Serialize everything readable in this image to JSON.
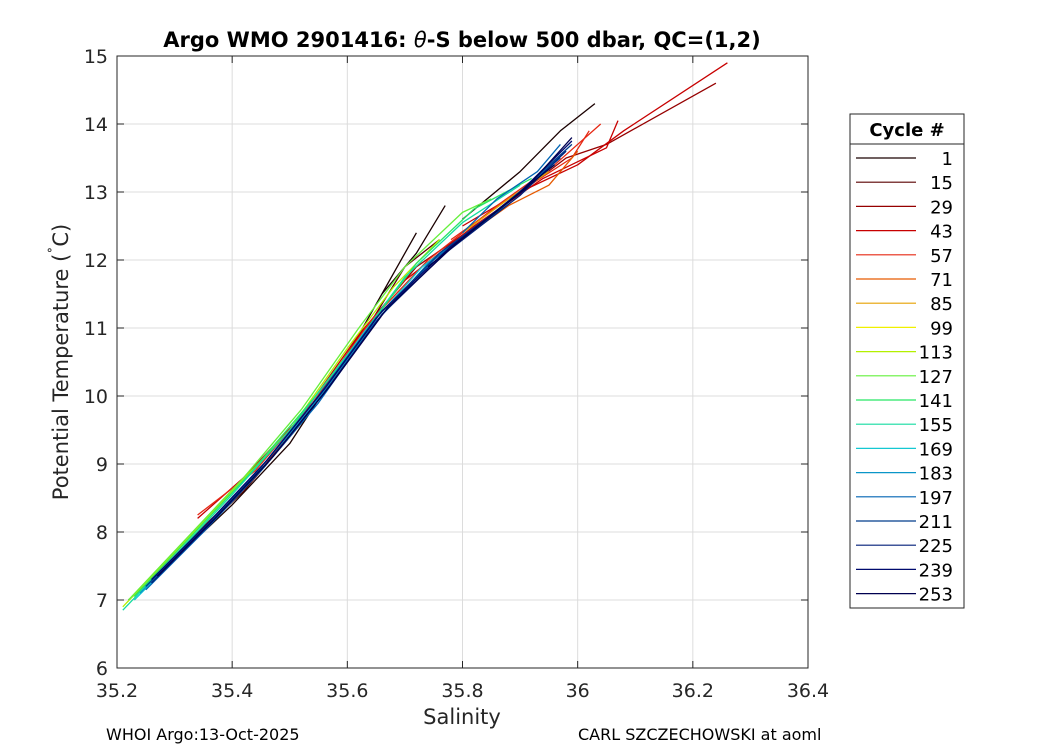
{
  "chart_data": {
    "type": "line",
    "title_parts": [
      "Argo WMO 2901416: ",
      "θ",
      "-S below 500 dbar,  QC=(1,2)"
    ],
    "xlabel": "Salinity",
    "ylabel_parts": [
      "Potential Temperature (",
      "˚",
      "C)"
    ],
    "xlim": [
      35.2,
      36.4
    ],
    "ylim": [
      6,
      15
    ],
    "xticks": [
      35.2,
      35.4,
      35.6,
      35.8,
      36,
      36.2,
      36.4
    ],
    "xtick_labels": [
      "35.2",
      "35.4",
      "35.6",
      "35.8",
      "36",
      "36.2",
      "36.4"
    ],
    "yticks": [
      6,
      7,
      8,
      9,
      10,
      11,
      12,
      13,
      14,
      15
    ],
    "ytick_labels": [
      "6",
      "7",
      "8",
      "9",
      "10",
      "11",
      "12",
      "13",
      "14",
      "15"
    ],
    "grid": true,
    "legend": {
      "title": "Cycle #",
      "placement": "outside-right",
      "entries": [
        {
          "label": "1",
          "color": "#1a0000"
        },
        {
          "label": "15",
          "color": "#5a0000"
        },
        {
          "label": "29",
          "color": "#960000"
        },
        {
          "label": "43",
          "color": "#c80000"
        },
        {
          "label": "57",
          "color": "#e62814"
        },
        {
          "label": "71",
          "color": "#e65a00"
        },
        {
          "label": "85",
          "color": "#e6a000"
        },
        {
          "label": "99",
          "color": "#f0f000"
        },
        {
          "label": "113",
          "color": "#b4f000"
        },
        {
          "label": "127",
          "color": "#64f03c"
        },
        {
          "label": "141",
          "color": "#28e664"
        },
        {
          "label": "155",
          "color": "#14dca0"
        },
        {
          "label": "169",
          "color": "#14c8d2"
        },
        {
          "label": "183",
          "color": "#0a96c8"
        },
        {
          "label": "197",
          "color": "#0064b4"
        },
        {
          "label": "211",
          "color": "#003c8c"
        },
        {
          "label": "225",
          "color": "#001e78"
        },
        {
          "label": "239",
          "color": "#000a6e"
        },
        {
          "label": "253",
          "color": "#000050"
        }
      ]
    },
    "series": [
      {
        "color": "#1a0000",
        "points": [
          [
            35.22,
            7.0
          ],
          [
            35.3,
            7.6
          ],
          [
            35.4,
            8.4
          ],
          [
            35.5,
            9.3
          ],
          [
            35.6,
            10.6
          ],
          [
            35.66,
            11.5
          ],
          [
            35.72,
            12.4
          ]
        ]
      },
      {
        "color": "#1a0000",
        "points": [
          [
            35.66,
            11.5
          ],
          [
            35.72,
            12.1
          ],
          [
            35.77,
            12.8
          ]
        ]
      },
      {
        "color": "#1a0000",
        "points": [
          [
            35.8,
            12.6
          ],
          [
            35.9,
            13.3
          ],
          [
            35.97,
            13.9
          ],
          [
            36.03,
            14.3
          ]
        ]
      },
      {
        "color": "#5a0000",
        "points": [
          [
            35.24,
            7.1
          ],
          [
            35.32,
            7.8
          ],
          [
            35.42,
            8.6
          ],
          [
            35.52,
            9.6
          ],
          [
            35.62,
            10.8
          ],
          [
            35.7,
            11.9
          ],
          [
            35.76,
            12.3
          ]
        ]
      },
      {
        "color": "#960000",
        "points": [
          [
            35.25,
            7.2
          ],
          [
            35.34,
            8.0
          ],
          [
            35.44,
            8.8
          ],
          [
            35.55,
            10.0
          ],
          [
            35.63,
            11.0
          ],
          [
            35.72,
            11.9
          ],
          [
            35.84,
            12.6
          ],
          [
            35.98,
            13.5
          ],
          [
            36.05,
            13.7
          ],
          [
            36.24,
            14.6
          ]
        ]
      },
      {
        "color": "#c80000",
        "points": [
          [
            35.34,
            8.2
          ],
          [
            35.42,
            8.8
          ],
          [
            35.52,
            9.7
          ],
          [
            35.62,
            10.9
          ],
          [
            35.7,
            11.7
          ],
          [
            35.82,
            12.5
          ],
          [
            35.94,
            13.2
          ],
          [
            36.05,
            13.65
          ],
          [
            36.07,
            14.05
          ]
        ]
      },
      {
        "color": "#c80000",
        "points": [
          [
            35.8,
            12.5
          ],
          [
            35.9,
            13.0
          ],
          [
            36.0,
            13.4
          ],
          [
            36.08,
            13.9
          ],
          [
            36.26,
            14.9
          ]
        ]
      },
      {
        "color": "#e62814",
        "points": [
          [
            35.34,
            8.25
          ],
          [
            35.44,
            8.9
          ],
          [
            35.54,
            9.9
          ],
          [
            35.64,
            11.1
          ],
          [
            35.74,
            12.0
          ],
          [
            35.86,
            12.8
          ],
          [
            35.96,
            13.4
          ],
          [
            36.04,
            14.0
          ]
        ]
      },
      {
        "color": "#e62814",
        "points": [
          [
            35.78,
            12.3
          ],
          [
            35.88,
            12.9
          ],
          [
            35.99,
            13.5
          ],
          [
            36.02,
            13.9
          ]
        ]
      },
      {
        "color": "#e65a00",
        "points": [
          [
            35.78,
            12.2
          ],
          [
            35.88,
            12.8
          ],
          [
            35.95,
            13.1
          ],
          [
            36.0,
            13.6
          ]
        ]
      },
      {
        "color": "#e6a000",
        "points": [
          [
            35.8,
            12.4
          ],
          [
            35.88,
            12.9
          ],
          [
            35.95,
            13.3
          ]
        ]
      },
      {
        "color": "#b4f000",
        "points": [
          [
            35.21,
            6.9
          ],
          [
            35.3,
            7.7
          ],
          [
            35.4,
            8.6
          ],
          [
            35.5,
            9.5
          ],
          [
            35.6,
            10.7
          ],
          [
            35.68,
            11.6
          ],
          [
            35.76,
            12.3
          ]
        ]
      },
      {
        "color": "#64f03c",
        "points": [
          [
            35.22,
            7.0
          ],
          [
            35.32,
            7.9
          ],
          [
            35.42,
            8.8
          ],
          [
            35.52,
            9.8
          ],
          [
            35.62,
            11.0
          ],
          [
            35.7,
            11.9
          ],
          [
            35.8,
            12.7
          ],
          [
            35.85,
            12.9
          ]
        ]
      },
      {
        "color": "#28e664",
        "points": [
          [
            35.23,
            7.05
          ],
          [
            35.33,
            7.95
          ],
          [
            35.43,
            8.85
          ],
          [
            35.54,
            9.95
          ],
          [
            35.64,
            11.05
          ],
          [
            35.72,
            11.95
          ],
          [
            35.82,
            12.75
          ],
          [
            35.92,
            13.2
          ]
        ]
      },
      {
        "color": "#14dca0",
        "points": [
          [
            35.21,
            6.85
          ],
          [
            35.3,
            7.65
          ],
          [
            35.4,
            8.55
          ],
          [
            35.5,
            9.5
          ],
          [
            35.6,
            10.6
          ],
          [
            35.7,
            11.75
          ],
          [
            35.8,
            12.55
          ],
          [
            35.9,
            13.1
          ]
        ]
      },
      {
        "color": "#14c8d2",
        "points": [
          [
            35.23,
            7.0
          ],
          [
            35.33,
            7.85
          ],
          [
            35.43,
            8.75
          ],
          [
            35.53,
            9.75
          ],
          [
            35.63,
            10.95
          ],
          [
            35.73,
            11.9
          ],
          [
            35.84,
            12.6
          ],
          [
            35.96,
            13.4
          ]
        ]
      },
      {
        "color": "#0a96c8",
        "points": [
          [
            35.24,
            7.1
          ],
          [
            35.34,
            7.95
          ],
          [
            35.44,
            8.85
          ],
          [
            35.54,
            9.85
          ],
          [
            35.64,
            11.0
          ],
          [
            35.74,
            11.95
          ],
          [
            35.86,
            12.7
          ],
          [
            35.98,
            13.6
          ]
        ]
      },
      {
        "color": "#0064b4",
        "points": [
          [
            35.25,
            7.15
          ],
          [
            35.35,
            8.0
          ],
          [
            35.45,
            8.9
          ],
          [
            35.55,
            9.9
          ],
          [
            35.65,
            11.1
          ],
          [
            35.75,
            12.0
          ],
          [
            35.87,
            12.8
          ],
          [
            35.97,
            13.5
          ]
        ]
      },
      {
        "color": "#003c8c",
        "points": [
          [
            35.25,
            7.2
          ],
          [
            35.35,
            8.05
          ],
          [
            35.45,
            8.95
          ],
          [
            35.55,
            10.0
          ],
          [
            35.65,
            11.15
          ],
          [
            35.76,
            12.1
          ],
          [
            35.88,
            12.85
          ],
          [
            35.99,
            13.7
          ]
        ]
      },
      {
        "color": "#001e78",
        "points": [
          [
            35.26,
            7.25
          ],
          [
            35.36,
            8.1
          ],
          [
            35.46,
            9.0
          ],
          [
            35.56,
            10.05
          ],
          [
            35.66,
            11.2
          ],
          [
            35.77,
            12.1
          ],
          [
            35.9,
            12.95
          ],
          [
            35.98,
            13.6
          ]
        ]
      },
      {
        "color": "#000a6e",
        "points": [
          [
            35.26,
            7.3
          ],
          [
            35.36,
            8.15
          ],
          [
            35.46,
            9.05
          ],
          [
            35.56,
            10.1
          ],
          [
            35.66,
            11.25
          ],
          [
            35.78,
            12.2
          ],
          [
            35.9,
            13.0
          ],
          [
            35.99,
            13.75
          ]
        ]
      },
      {
        "color": "#000050",
        "points": [
          [
            35.27,
            7.35
          ],
          [
            35.37,
            8.2
          ],
          [
            35.47,
            9.1
          ],
          [
            35.57,
            10.15
          ],
          [
            35.67,
            11.3
          ],
          [
            35.79,
            12.25
          ],
          [
            35.91,
            13.05
          ],
          [
            35.99,
            13.8
          ]
        ]
      },
      {
        "color": "#0064b4",
        "points": [
          [
            35.8,
            12.4
          ],
          [
            35.86,
            12.9
          ],
          [
            35.93,
            13.3
          ],
          [
            35.97,
            13.7
          ]
        ]
      },
      {
        "color": "#000050",
        "points": [
          [
            35.74,
            11.9
          ],
          [
            35.82,
            12.45
          ],
          [
            35.9,
            13.0
          ],
          [
            35.96,
            13.4
          ]
        ]
      }
    ]
  },
  "footer": {
    "left": "WHOI Argo:13-Oct-2025",
    "right": "CARL SZCZECHOWSKI at aoml"
  }
}
